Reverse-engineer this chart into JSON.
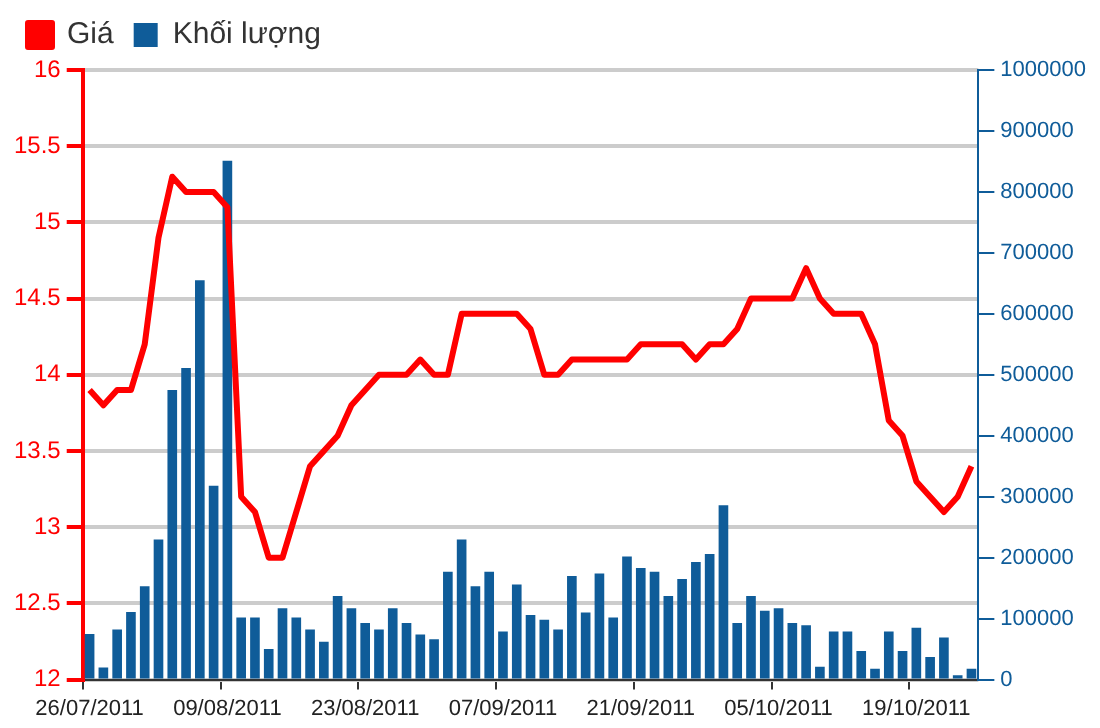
{
  "chart_data": {
    "type": "bar",
    "categories": [
      "26/07/2011",
      null,
      null,
      null,
      null,
      null,
      null,
      null,
      null,
      null,
      "09/08/2011",
      null,
      null,
      null,
      null,
      null,
      null,
      null,
      null,
      null,
      "23/08/2011",
      null,
      null,
      null,
      null,
      null,
      null,
      null,
      null,
      null,
      "07/09/2011",
      null,
      null,
      null,
      null,
      null,
      null,
      null,
      null,
      null,
      "21/09/2011",
      null,
      null,
      null,
      null,
      null,
      null,
      null,
      null,
      null,
      "05/10/2011",
      null,
      null,
      null,
      null,
      null,
      null,
      null,
      null,
      null,
      "19/10/2011",
      null,
      null,
      null,
      null
    ],
    "series": [
      {
        "name": "Giá",
        "type": "line",
        "color": "#ff0000",
        "values": [
          13.9,
          13.8,
          13.9,
          13.9,
          14.2,
          14.9,
          15.3,
          15.2,
          15.2,
          15.2,
          15.1,
          13.2,
          13.1,
          12.8,
          12.8,
          13.1,
          13.4,
          13.5,
          13.6,
          13.8,
          13.9,
          14.0,
          14.0,
          14.0,
          14.1,
          14.0,
          14.0,
          14.4,
          14.4,
          14.4,
          14.4,
          14.4,
          14.3,
          14.0,
          14.0,
          14.1,
          14.1,
          14.1,
          14.1,
          14.1,
          14.2,
          14.2,
          14.2,
          14.2,
          14.1,
          14.2,
          14.2,
          14.3,
          14.5,
          14.5,
          14.5,
          14.5,
          14.7,
          14.5,
          14.4,
          14.4,
          14.4,
          14.2,
          13.7,
          13.6,
          13.3,
          13.2,
          13.1,
          13.2,
          13.4
        ]
      },
      {
        "name": "Khối lượng",
        "axis": "y2",
        "color": "#0f5c99",
        "values": [
          75000,
          20000,
          82000,
          111000,
          153000,
          230000,
          475000,
          511000,
          655000,
          318000,
          851000,
          102000,
          102000,
          50000,
          117000,
          102000,
          82000,
          62000,
          137000,
          117000,
          93000,
          82000,
          117000,
          93000,
          74000,
          66000,
          177000,
          230000,
          153000,
          177000,
          79000,
          156000,
          106000,
          98000,
          82000,
          170000,
          110000,
          174000,
          102000,
          202000,
          183000,
          177000,
          137000,
          165000,
          193000,
          206000,
          286000,
          93000,
          137000,
          113000,
          117000,
          93000,
          89000,
          21000,
          79000,
          79000,
          47000,
          18000,
          79000,
          47000,
          85000,
          37000,
          69000,
          7000,
          18000
        ]
      }
    ],
    "ylim": [
      12,
      16
    ],
    "yticks": [
      12,
      12.5,
      13,
      13.5,
      14,
      14.5,
      15,
      15.5,
      16
    ],
    "y2lim": [
      0,
      1000000
    ],
    "y2ticks": [
      0,
      100000,
      200000,
      300000,
      400000,
      500000,
      600000,
      700000,
      800000,
      900000,
      1000000
    ],
    "grid": "y",
    "legend": "top left",
    "marker": "none"
  }
}
